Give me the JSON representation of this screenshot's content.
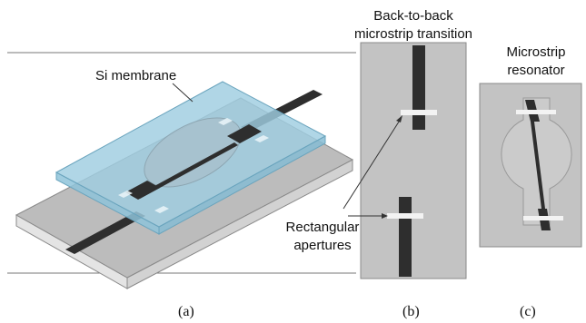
{
  "panels": {
    "a": {
      "caption": "(a)",
      "label_membrane": "Si membrane"
    },
    "b": {
      "caption": "(b)",
      "title_line1": "Back-to-back",
      "title_line2": "microstrip transition",
      "label_line1": "Rectangular",
      "label_line2": "apertures"
    },
    "c": {
      "caption": "(c)",
      "title_line1": "Microstrip",
      "title_line2": "resonator"
    }
  },
  "colors": {
    "substrate_top": "#bcbcbc",
    "substrate_side": "#e4e4e4",
    "membrane": "#9fcde0",
    "strip": "#2e2e2e",
    "panel_fill": "#c3c3c3",
    "aperture": "#f3f3f3"
  }
}
